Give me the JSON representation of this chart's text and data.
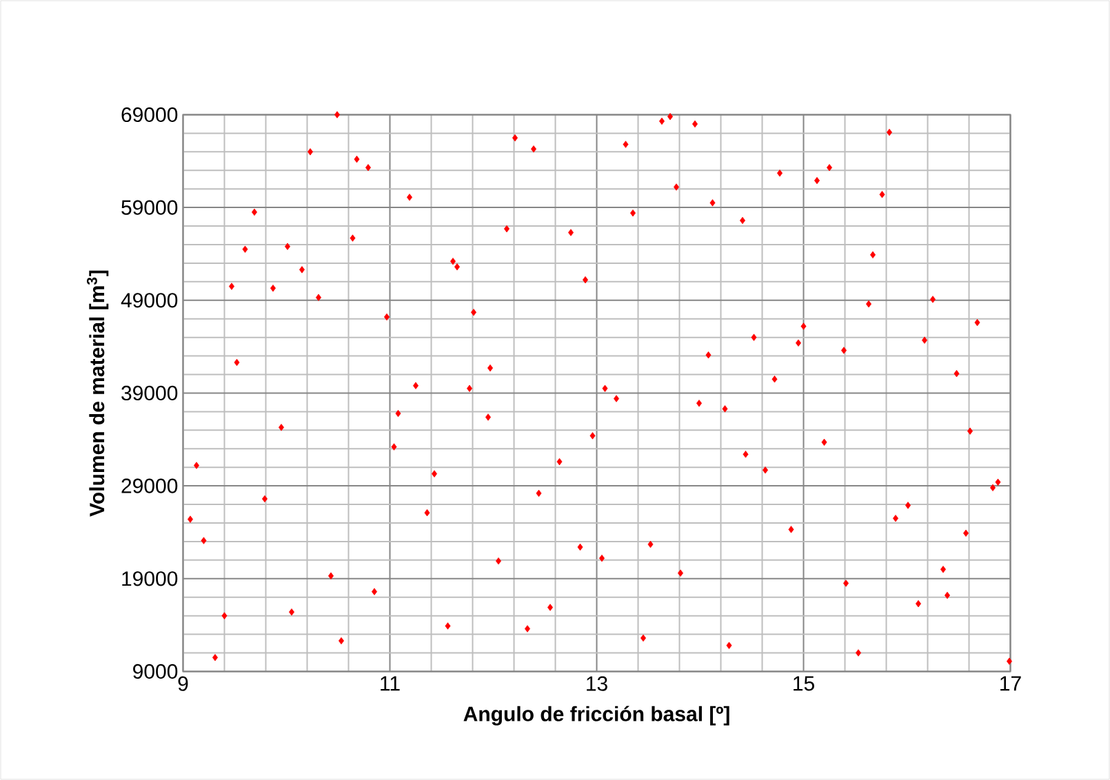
{
  "chart_data": {
    "type": "scatter",
    "xlabel": "Angulo de fricción basal [º]",
    "ylabel": "Volumen de material [m$^{3}$]",
    "xlim": [
      9,
      17
    ],
    "ylim": [
      9000,
      69000
    ],
    "xticks": [
      9,
      11,
      13,
      15,
      17
    ],
    "yticks": [
      9000,
      19000,
      29000,
      39000,
      49000,
      59000,
      69000
    ],
    "grid": true,
    "marker": "diamond",
    "series": [
      {
        "color": "#ff0000",
        "x": [
          10.49,
          10.23,
          10.68,
          10.79,
          11.19,
          9.69,
          10.64,
          9.6,
          10.01,
          10.15,
          9.47,
          9.87,
          10.31,
          10.97,
          9.52,
          11.25,
          13.63,
          13.71,
          13.95,
          12.21,
          12.39,
          13.28,
          13.77,
          14.12,
          13.35,
          12.13,
          12.75,
          11.61,
          11.65,
          12.89,
          11.81,
          14.08,
          11.97,
          11.77,
          13.08,
          15.83,
          14.77,
          15.25,
          15.13,
          15.76,
          14.41,
          15.67,
          15.63,
          16.25,
          15.0,
          16.68,
          14.52,
          14.95,
          16.17,
          15.39,
          14.72,
          16.48,
          11.08,
          9.95,
          11.04,
          9.13,
          11.43,
          9.79,
          9.07,
          9.2,
          11.36,
          10.43,
          10.85,
          9.4,
          10.05,
          11.56,
          10.53,
          9.31,
          13.19,
          13.99,
          11.95,
          12.96,
          12.64,
          12.44,
          12.84,
          13.52,
          12.05,
          13.05,
          13.81,
          12.55,
          12.33,
          13.45,
          14.24,
          14.44,
          14.63,
          15.2,
          14.88,
          16.61,
          16.83,
          16.88,
          16.01,
          15.89,
          16.57,
          16.35,
          15.41,
          16.39,
          16.11,
          14.28,
          15.53,
          16.99
        ],
        "values": [
          69000,
          65000,
          64200,
          63300,
          60100,
          58500,
          55700,
          54500,
          54800,
          52300,
          50500,
          50300,
          49300,
          47200,
          42300,
          39800,
          68300,
          68800,
          68000,
          66500,
          65300,
          65800,
          61200,
          59500,
          58400,
          56700,
          56300,
          53200,
          52600,
          51200,
          47700,
          43100,
          41700,
          39500,
          39500,
          67100,
          62700,
          63300,
          61900,
          60400,
          57600,
          53900,
          48600,
          49100,
          46200,
          46600,
          45000,
          44400,
          44700,
          43600,
          40500,
          41100,
          36800,
          35300,
          33200,
          31200,
          30300,
          27600,
          25400,
          23100,
          26100,
          19300,
          17600,
          15000,
          15400,
          13900,
          12300,
          10500,
          38400,
          37900,
          36400,
          34400,
          31600,
          28200,
          22400,
          22700,
          20900,
          21200,
          19600,
          15900,
          13600,
          12600,
          37300,
          32400,
          30700,
          33700,
          24300,
          34900,
          28800,
          29400,
          26900,
          25500,
          23900,
          20000,
          18500,
          17200,
          16300,
          11800,
          11000,
          10100
        ]
      }
    ]
  }
}
